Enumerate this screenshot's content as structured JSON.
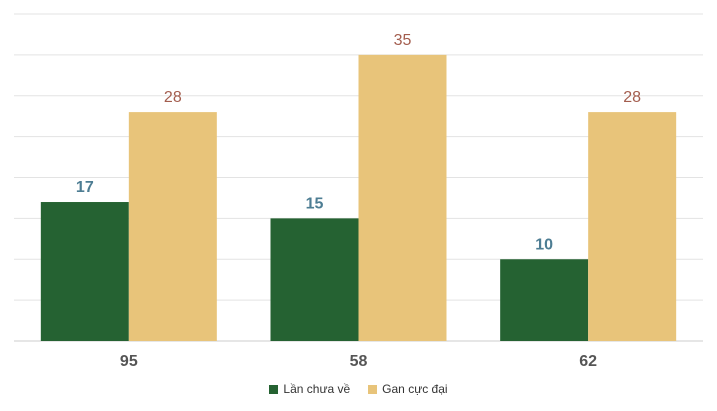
{
  "chart_data": {
    "type": "bar",
    "categories": [
      "95",
      "58",
      "62"
    ],
    "series": [
      {
        "name": "Lần chưa về",
        "values": [
          17,
          15,
          10
        ],
        "color": "#256232",
        "label_color": "#4d7d93"
      },
      {
        "name": "Gan cực đại",
        "values": [
          28,
          35,
          28
        ],
        "color": "#e8c47a",
        "label_color": "#a35d4e"
      }
    ],
    "ylim": [
      0,
      40
    ],
    "grid": true,
    "legend_position": "bottom",
    "axis_label_color": "#555555"
  }
}
